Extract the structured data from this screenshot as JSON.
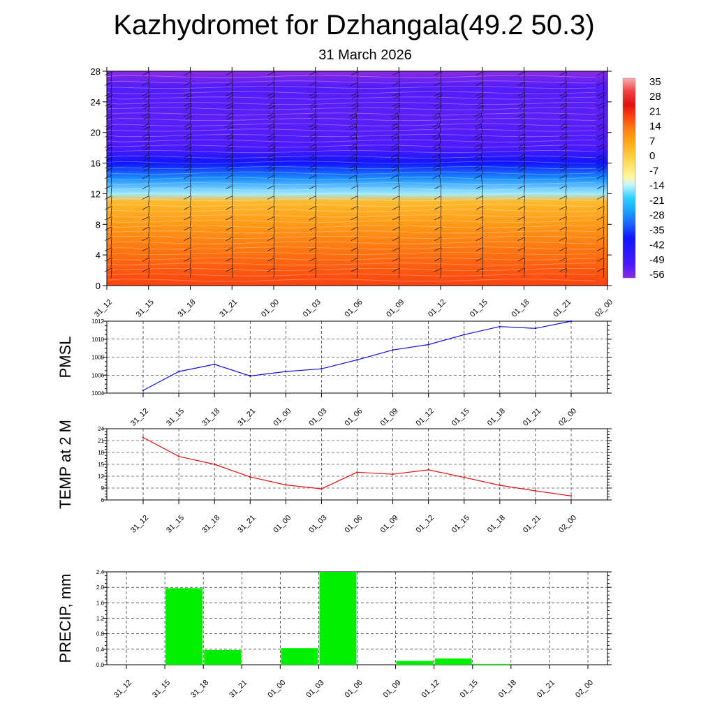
{
  "title": "Kazhydromet for Dzhangala(49.2 50.3)",
  "subtitle": "31 March 2026",
  "colors": {
    "pressure_line": "#1010d0",
    "temp_line": "#e01010",
    "precip_bar": "#00ee00",
    "grid": "#000000"
  },
  "chart_data": [
    {
      "type": "heatmap",
      "name": "cross-section",
      "title": "",
      "description": "Vertical cross-section of temperature with wind barbs",
      "times": [
        "31_12",
        "31_15",
        "31_18",
        "31_21",
        "01_00",
        "01_03",
        "01_06",
        "01_09",
        "01_12",
        "01_15",
        "01_18",
        "01_21",
        "02_00"
      ],
      "ylim": [
        0,
        28
      ],
      "yticks": [
        0,
        4,
        8,
        12,
        16,
        20,
        24,
        28
      ],
      "colorbar": {
        "labels": [
          "35",
          "28",
          "21",
          "14",
          "7",
          "0",
          "-7",
          "-14",
          "-21",
          "-28",
          "-35",
          "-42",
          "-49",
          "-56"
        ],
        "range": [
          -63,
          42
        ]
      },
      "temperature_profile": [
        {
          "level": 0,
          "value": 22
        },
        {
          "level": 4,
          "value": 17
        },
        {
          "level": 8,
          "value": 11
        },
        {
          "level": 11,
          "value": 5
        },
        {
          "level": 12,
          "value": -16
        },
        {
          "level": 14,
          "value": -30
        },
        {
          "level": 16,
          "value": -42
        },
        {
          "level": 18,
          "value": -56
        },
        {
          "level": 22,
          "value": -58
        },
        {
          "level": 26,
          "value": -57
        },
        {
          "level": 28,
          "value": -63
        }
      ]
    },
    {
      "type": "line",
      "name": "pmsl",
      "ylabel": "PMSL",
      "categories": [
        "31_12",
        "31_15",
        "31_18",
        "31_21",
        "01_00",
        "01_03",
        "01_06",
        "01_09",
        "01_12",
        "01_15",
        "01_18",
        "01_21",
        "02_00"
      ],
      "values": [
        1004.3,
        1006.4,
        1007.2,
        1005.9,
        1006.4,
        1006.7,
        1007.7,
        1008.8,
        1009.4,
        1010.5,
        1011.4,
        1011.2,
        1012.0
      ],
      "ylim": [
        1004,
        1012
      ],
      "yticks": [
        "1004",
        "1006",
        "1008",
        "1010",
        "1012"
      ]
    },
    {
      "type": "line",
      "name": "temp2m",
      "ylabel": "TEMP at 2 M",
      "categories": [
        "31_12",
        "31_15",
        "31_18",
        "31_21",
        "01_00",
        "01_03",
        "01_06",
        "01_09",
        "01_12",
        "01_15",
        "01_18",
        "01_21",
        "02_00"
      ],
      "values": [
        21.8,
        17.0,
        15.0,
        11.8,
        9.8,
        8.8,
        13.0,
        12.5,
        13.6,
        11.7,
        9.7,
        8.3,
        7.0
      ],
      "ylim": [
        6,
        24
      ],
      "yticks": [
        "6",
        "9",
        "12",
        "15",
        "18",
        "21",
        "24"
      ]
    },
    {
      "type": "bar",
      "name": "precip",
      "ylabel": "PRECIP, mm",
      "categories": [
        "31_12",
        "31_15",
        "31_18",
        "31_21",
        "01_00",
        "01_03",
        "01_06",
        "01_09",
        "01_12",
        "01_15",
        "01_18",
        "01_21",
        "02_00"
      ],
      "values": [
        0.0,
        1.98,
        0.38,
        0.0,
        0.43,
        2.4,
        0.0,
        0.1,
        0.16,
        0.02,
        0.0,
        0.0,
        0.0
      ],
      "ylim": [
        0,
        2.4
      ],
      "yticks": [
        "0.0",
        "0.4",
        "0.8",
        "1.2",
        "1.6",
        "2.0",
        "2.4"
      ]
    }
  ]
}
